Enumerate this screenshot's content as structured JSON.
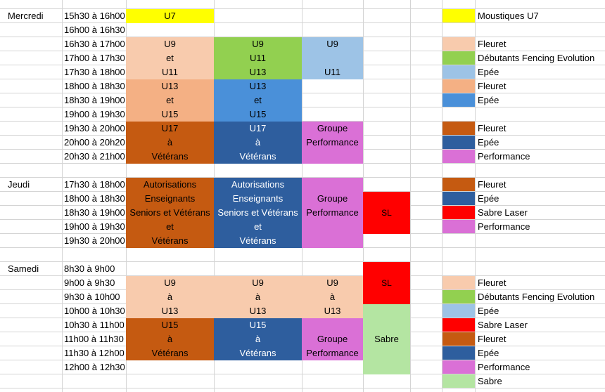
{
  "colors": {
    "yellow": "#FFFF00",
    "peach": "#F8CBAD",
    "green": "#92D050",
    "lightblue": "#9DC3E6",
    "salmon": "#F4B084",
    "medblue": "#4A90D9",
    "rust": "#C55A11",
    "darkblue": "#2E5E9E",
    "magenta": "#DA70D6",
    "red": "#FF0000",
    "lightgreen": "#B4E5A2"
  },
  "days": {
    "mercredi": "Mercredi",
    "jeudi": "Jeudi",
    "samedi": "Samedi"
  },
  "times": [
    "15h30 à 16h00",
    "16h00 à 16h30",
    "16h30 à 17h00",
    "17h00 à 17h30",
    "17h30 à 18h00",
    "18h00 à 18h30",
    "18h30 à 19h00",
    "19h00 à 19h30",
    "19h30 à 20h00",
    "20h00 à 20h20",
    "20h30 à 21h00",
    "",
    "17h30 à 18h00",
    "18h00 à 18h30",
    "18h30 à 19h00",
    "19h00 à 19h30",
    "19h30 à 20h00",
    "",
    "8h30 à 9h00",
    "9h00 à 9h30",
    "9h30 à 10h00",
    "10h00 à 10h30",
    "10h30 à 11h00",
    "11h00 à 11h30",
    "11h30 à 12h00",
    "12h00 à 12h30"
  ],
  "blocks": {
    "u7": [
      "U7"
    ],
    "mer_fleuret_u9": [
      "U9",
      "et",
      "U11"
    ],
    "mer_debutants_u9": [
      "U9",
      "U11",
      "U13"
    ],
    "mer_epee_u9_l1": "U9",
    "mer_epee_u9_l3": "U11",
    "mer_fleuret_u13": [
      "U13",
      "et",
      "U15"
    ],
    "mer_epee_u13": [
      "U13",
      "et",
      "U15"
    ],
    "mer_fleuret_u17": [
      "U17",
      "à",
      "Vétérans"
    ],
    "mer_epee_u17": [
      "U17",
      "à",
      "Vétérans"
    ],
    "mer_perf": [
      "Groupe",
      "Performance"
    ],
    "jeu_fleuret": [
      "Autorisations",
      "Enseignants",
      "Seniors et Vétérans",
      "et",
      "Vétérans"
    ],
    "jeu_epee": [
      "Autorisations",
      "Enseignants",
      "Seniors et Vétérans",
      "et",
      "Vétérans"
    ],
    "jeu_perf": [
      "Groupe",
      "Performance"
    ],
    "jeu_sl": [
      "SL"
    ],
    "sam_sl": [
      "SL"
    ],
    "sam_u9_a": [
      "U9",
      "à",
      "U13"
    ],
    "sam_u9_b": [
      "U9",
      "à",
      "U13"
    ],
    "sam_u9_c": [
      "U9",
      "à",
      "U13"
    ],
    "sam_sabre": [
      "Sabre"
    ],
    "sam_fleuret": [
      "U15",
      "à",
      "Vétérans"
    ],
    "sam_epee": [
      "U15",
      "à",
      "Vétérans"
    ],
    "sam_perf": [
      "Groupe",
      "Performance"
    ]
  },
  "legend": [
    {
      "label": "Moustiques U7",
      "color": "#FFFF00"
    },
    {
      "label": "",
      "color": ""
    },
    {
      "label": "Fleuret",
      "color": "#F8CBAD"
    },
    {
      "label": "Débutants Fencing Evolution",
      "color": "#92D050"
    },
    {
      "label": "Epée",
      "color": "#9DC3E6"
    },
    {
      "label": "Fleuret",
      "color": "#F4B084"
    },
    {
      "label": "Epée",
      "color": "#4A90D9"
    },
    {
      "label": "",
      "color": ""
    },
    {
      "label": "Fleuret",
      "color": "#C55A11"
    },
    {
      "label": "Epée",
      "color": "#2E5E9E"
    },
    {
      "label": "Performance",
      "color": "#DA70D6"
    },
    {
      "label": "",
      "color": ""
    },
    {
      "label": "Fleuret",
      "color": "#C55A11"
    },
    {
      "label": "Epée",
      "color": "#2E5E9E"
    },
    {
      "label": "Sabre Laser",
      "color": "#FF0000"
    },
    {
      "label": "Performance",
      "color": "#DA70D6"
    },
    {
      "label": "",
      "color": ""
    },
    {
      "label": "",
      "color": ""
    },
    {
      "label": "",
      "color": ""
    },
    {
      "label": "Fleuret",
      "color": "#F8CBAD"
    },
    {
      "label": "Débutants Fencing Evolution",
      "color": "#92D050"
    },
    {
      "label": "Epée",
      "color": "#9DC3E6"
    },
    {
      "label": "Sabre Laser",
      "color": "#FF0000"
    },
    {
      "label": "Fleuret",
      "color": "#C55A11"
    },
    {
      "label": "Epée",
      "color": "#2E5E9E"
    },
    {
      "label": "Performance",
      "color": "#DA70D6"
    },
    {
      "label": "Sabre",
      "color": "#B4E5A2"
    }
  ]
}
